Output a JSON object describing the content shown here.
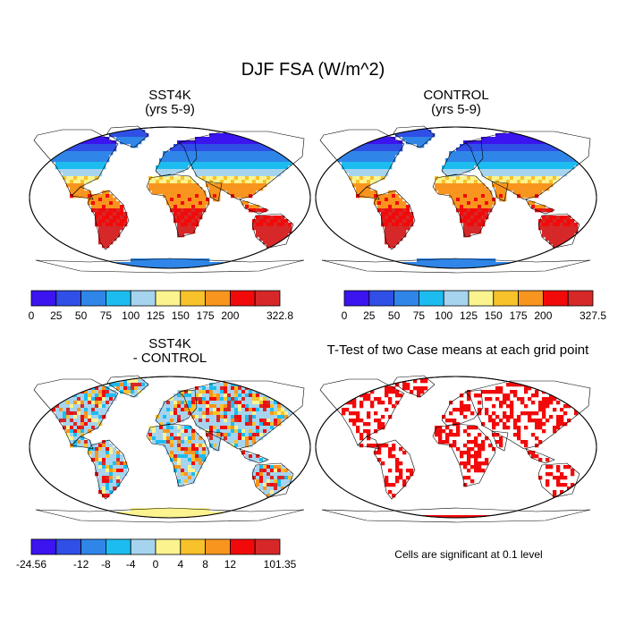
{
  "chart_data": {
    "type": "heatmap",
    "title": "DJF FSA (W/m^2)",
    "panels": [
      {
        "id": "sst4k",
        "title": "SST4K",
        "subtitle": "(yrs 5-9)",
        "colorbar": {
          "colors": [
            "#3b14f0",
            "#2f4fe6",
            "#2f86e8",
            "#1dbcf0",
            "#a6d4ef",
            "#fbf38e",
            "#f8c22a",
            "#f8951e",
            "#f20a0a",
            "#d62828"
          ],
          "ticks": [
            "0",
            "25",
            "50",
            "75",
            "100",
            "125",
            "150",
            "175",
            "200",
            "",
            "322.8"
          ]
        }
      },
      {
        "id": "control",
        "title": "CONTROL",
        "subtitle": "(yrs 5-9)",
        "colorbar": {
          "colors": [
            "#3b14f0",
            "#2f4fe6",
            "#2f86e8",
            "#1dbcf0",
            "#a6d4ef",
            "#fbf38e",
            "#f8c22a",
            "#f8951e",
            "#f20a0a",
            "#d62828"
          ],
          "ticks": [
            "0",
            "25",
            "50",
            "75",
            "100",
            "125",
            "150",
            "175",
            "200",
            "",
            "327.5"
          ]
        }
      },
      {
        "id": "difference",
        "title": "SST4K",
        "subtitle": "- CONTROL",
        "colorbar": {
          "colors": [
            "#3b14f0",
            "#2f4fe6",
            "#2f86e8",
            "#1dbcf0",
            "#a6d4ef",
            "#fbf38e",
            "#f8c22a",
            "#f8951e",
            "#f20a0a",
            "#d62828"
          ],
          "ticks": [
            "-24.56",
            "",
            "-12",
            "-8",
            "-4",
            "0",
            "4",
            "8",
            "12",
            "",
            "101.35"
          ]
        }
      },
      {
        "id": "ttest",
        "title": "T-Test of two Case means at each grid point",
        "note": "Cells are significant at 0.1 level",
        "significant_color": "#f20a0a"
      }
    ]
  }
}
